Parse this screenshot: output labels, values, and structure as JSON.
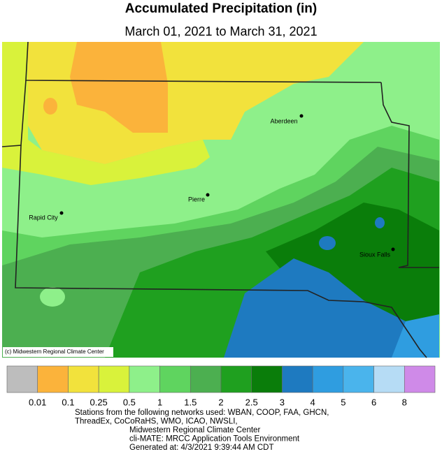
{
  "header": {
    "title": "Accumulated Precipitation (in)",
    "subtitle": "March 01, 2021 to March 31, 2021"
  },
  "map": {
    "cities": [
      {
        "name": "Aberdeen"
      },
      {
        "name": "Pierre"
      },
      {
        "name": "Rapid City"
      },
      {
        "name": "Sioux Falls"
      }
    ],
    "credit": "(c) Midwestern Regional Climate Center"
  },
  "legend": {
    "colors": [
      "#bdbdbd",
      "#fbb33b",
      "#f2e23c",
      "#d9f23b",
      "#8ef08a",
      "#5fd45f",
      "#4caf50",
      "#1fa01f",
      "#0a7d0a",
      "#1e7ac0",
      "#2f9de0",
      "#4ab4ec",
      "#b6dcf5",
      "#cf8ae8"
    ],
    "breaks": [
      0.01,
      0.1,
      0.25,
      0.5,
      1,
      1.5,
      2,
      2.5,
      3,
      4,
      5,
      6,
      8
    ]
  },
  "footer": {
    "lines": [
      "Stations from the following networks used: WBAN, COOP, FAA, GHCN,",
      "ThreadEx, CoCoRaHS, WMO, ICAO, NWSLI,",
      "Midwestern Regional Climate Center",
      "cli-MATE: MRCC Application Tools Environment",
      "Generated at: 4/3/2021 9:39:44 AM CDT"
    ]
  }
}
